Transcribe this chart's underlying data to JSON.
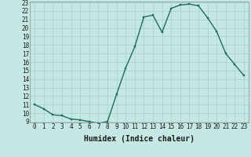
{
  "x": [
    0,
    1,
    2,
    3,
    4,
    5,
    6,
    7,
    8,
    9,
    10,
    11,
    12,
    13,
    14,
    15,
    16,
    17,
    18,
    19,
    20,
    21,
    22,
    23
  ],
  "y": [
    11.0,
    10.5,
    9.8,
    9.7,
    9.3,
    9.2,
    9.0,
    8.8,
    9.0,
    12.2,
    15.3,
    17.8,
    21.3,
    21.5,
    19.5,
    22.3,
    22.7,
    22.8,
    22.6,
    21.2,
    19.6,
    17.0,
    15.7,
    14.4
  ],
  "xlabel": "Humidex (Indice chaleur)",
  "ylim_min": 9,
  "ylim_max": 23,
  "xlim_min": -0.5,
  "xlim_max": 23.5,
  "yticks": [
    9,
    10,
    11,
    12,
    13,
    14,
    15,
    16,
    17,
    18,
    19,
    20,
    21,
    22,
    23
  ],
  "xticks": [
    0,
    1,
    2,
    3,
    4,
    5,
    6,
    7,
    8,
    9,
    10,
    11,
    12,
    13,
    14,
    15,
    16,
    17,
    18,
    19,
    20,
    21,
    22,
    23
  ],
  "line_color": "#1f6b5a",
  "marker_color": "#1f6b5a",
  "bg_color": "#c5e8e5",
  "grid_color": "#aad4d0",
  "xlabel_fontsize": 7,
  "tick_fontsize": 5.5,
  "linewidth": 1.0,
  "marker_size": 2.0
}
